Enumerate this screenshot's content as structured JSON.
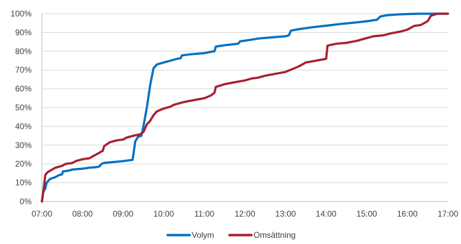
{
  "chart_data": {
    "type": "line",
    "title": "",
    "xlabel": "",
    "ylabel": "",
    "x_tick_labels": [
      "07:00",
      "08:00",
      "09:00",
      "10:00",
      "11:00",
      "12:00",
      "13:00",
      "14:00",
      "15:00",
      "16:00",
      "17:00"
    ],
    "y_tick_labels": [
      "0%",
      "10%",
      "20%",
      "30%",
      "40%",
      "50%",
      "60%",
      "70%",
      "80%",
      "90%",
      "100%"
    ],
    "xlim": [
      "07:00",
      "17:00"
    ],
    "ylim": [
      0,
      100
    ],
    "grid": "horizontal",
    "legend_position": "bottom",
    "series": [
      {
        "name": "Volym",
        "color": "#0070C0",
        "points": [
          [
            "07:00",
            0
          ],
          [
            "07:02",
            5
          ],
          [
            "07:05",
            7
          ],
          [
            "07:07",
            10
          ],
          [
            "07:12",
            12
          ],
          [
            "07:20",
            13
          ],
          [
            "07:25",
            14
          ],
          [
            "07:30",
            14.5
          ],
          [
            "07:31",
            16
          ],
          [
            "07:40",
            16.5
          ],
          [
            "07:45",
            17
          ],
          [
            "08:00",
            17.5
          ],
          [
            "08:05",
            17.7
          ],
          [
            "08:10",
            18
          ],
          [
            "08:20",
            18.3
          ],
          [
            "08:25",
            18.7
          ],
          [
            "08:28",
            20
          ],
          [
            "08:32",
            20.6
          ],
          [
            "08:45",
            21
          ],
          [
            "09:00",
            21.5
          ],
          [
            "09:10",
            22
          ],
          [
            "09:14",
            22.2
          ],
          [
            "09:18",
            32
          ],
          [
            "09:22",
            34.5
          ],
          [
            "09:27",
            35
          ],
          [
            "09:30",
            40
          ],
          [
            "09:35",
            50
          ],
          [
            "09:40",
            62
          ],
          [
            "09:45",
            71
          ],
          [
            "09:50",
            73
          ],
          [
            "10:00",
            74
          ],
          [
            "10:10",
            75
          ],
          [
            "10:20",
            76
          ],
          [
            "10:25",
            76.3
          ],
          [
            "10:27",
            77.8
          ],
          [
            "10:40",
            78.4
          ],
          [
            "11:00",
            79
          ],
          [
            "11:10",
            79.7
          ],
          [
            "11:15",
            80
          ],
          [
            "11:17",
            82.5
          ],
          [
            "11:30",
            83.2
          ],
          [
            "11:50",
            84
          ],
          [
            "11:53",
            85.3
          ],
          [
            "12:10",
            86.2
          ],
          [
            "12:20",
            86.8
          ],
          [
            "12:40",
            87.4
          ],
          [
            "13:00",
            88
          ],
          [
            "13:05",
            88.5
          ],
          [
            "13:08",
            91
          ],
          [
            "13:20",
            91.8
          ],
          [
            "13:40",
            92.8
          ],
          [
            "14:00",
            93.6
          ],
          [
            "14:20",
            94.5
          ],
          [
            "14:40",
            95.2
          ],
          [
            "15:00",
            96
          ],
          [
            "15:15",
            96.8
          ],
          [
            "15:20",
            98.5
          ],
          [
            "15:30",
            99.2
          ],
          [
            "15:45",
            99.6
          ],
          [
            "16:00",
            99.8
          ],
          [
            "16:20",
            100
          ],
          [
            "17:00",
            100
          ]
        ]
      },
      {
        "name": "Omsättning",
        "color": "#A91F2E",
        "points": [
          [
            "07:00",
            0
          ],
          [
            "07:03",
            8
          ],
          [
            "07:05",
            14
          ],
          [
            "07:08",
            15.5
          ],
          [
            "07:15",
            17
          ],
          [
            "07:20",
            18
          ],
          [
            "07:30",
            19
          ],
          [
            "07:35",
            20
          ],
          [
            "07:45",
            20.5
          ],
          [
            "07:50",
            21.5
          ],
          [
            "08:00",
            22.5
          ],
          [
            "08:10",
            23
          ],
          [
            "08:15",
            24
          ],
          [
            "08:20",
            25
          ],
          [
            "08:25",
            26
          ],
          [
            "08:30",
            27
          ],
          [
            "08:32",
            29.5
          ],
          [
            "08:40",
            31.5
          ],
          [
            "08:50",
            32.5
          ],
          [
            "09:00",
            33
          ],
          [
            "09:05",
            34
          ],
          [
            "09:15",
            35
          ],
          [
            "09:25",
            35.8
          ],
          [
            "09:30",
            37
          ],
          [
            "09:35",
            41
          ],
          [
            "09:40",
            43
          ],
          [
            "09:45",
            46
          ],
          [
            "09:50",
            48
          ],
          [
            "10:00",
            49.5
          ],
          [
            "10:10",
            50.5
          ],
          [
            "10:15",
            51.5
          ],
          [
            "10:30",
            53
          ],
          [
            "10:45",
            54
          ],
          [
            "11:00",
            55
          ],
          [
            "11:10",
            56.5
          ],
          [
            "11:15",
            58
          ],
          [
            "11:17",
            61
          ],
          [
            "11:30",
            62.5
          ],
          [
            "11:45",
            63.5
          ],
          [
            "12:00",
            64.5
          ],
          [
            "12:10",
            65.5
          ],
          [
            "12:20",
            66
          ],
          [
            "12:30",
            67
          ],
          [
            "12:45",
            68
          ],
          [
            "13:00",
            69
          ],
          [
            "13:10",
            70.5
          ],
          [
            "13:20",
            72
          ],
          [
            "13:30",
            74
          ],
          [
            "13:45",
            75
          ],
          [
            "14:00",
            76
          ],
          [
            "14:02",
            83
          ],
          [
            "14:15",
            84
          ],
          [
            "14:30",
            84.5
          ],
          [
            "14:45",
            85.5
          ],
          [
            "15:00",
            87
          ],
          [
            "15:10",
            88
          ],
          [
            "15:25",
            88.5
          ],
          [
            "15:35",
            89.5
          ],
          [
            "15:50",
            90.5
          ],
          [
            "16:00",
            91.5
          ],
          [
            "16:10",
            93.5
          ],
          [
            "16:20",
            94
          ],
          [
            "16:30",
            96
          ],
          [
            "16:35",
            99
          ],
          [
            "16:45",
            100
          ],
          [
            "17:00",
            100
          ]
        ]
      }
    ]
  }
}
